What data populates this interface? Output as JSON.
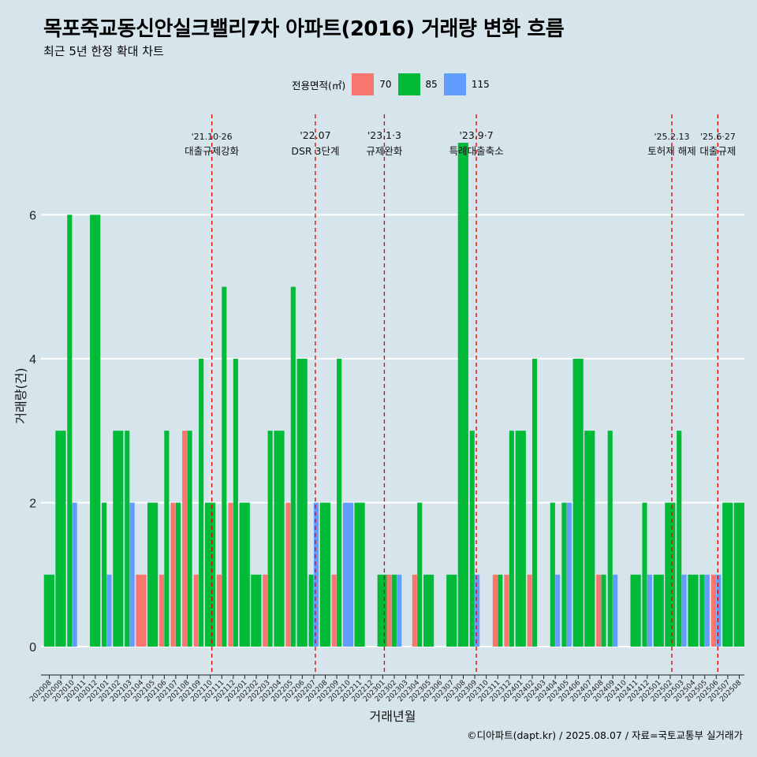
{
  "header": {
    "title": "목포죽교동신안실크밸리7차 아파트(2016) 거래량 변화 흐름",
    "subtitle": "최근 5년 한정 확대 차트"
  },
  "legend": {
    "title": "전용면적(㎡)",
    "items": [
      {
        "label": "70",
        "color": "#f8766d"
      },
      {
        "label": "85",
        "color": "#00ba38"
      },
      {
        "label": "115",
        "color": "#619cff"
      }
    ]
  },
  "caption": "©디아파트(dapt.kr) / 2025.08.07 / 자료=국토교통부 실거래가",
  "chart_data": {
    "type": "bar",
    "xlabel": "거래년월",
    "ylabel": "거래량(건)",
    "ylim": [
      -0.35,
      7.45
    ],
    "yticks": [
      0,
      2,
      4,
      6
    ],
    "grid": true,
    "legend_position": "top",
    "categories": [
      "202008",
      "202009",
      "202010",
      "202011",
      "202012",
      "202101",
      "202102",
      "202103",
      "202104",
      "202105",
      "202106",
      "202107",
      "202108",
      "202109",
      "202110",
      "202111",
      "202112",
      "202201",
      "202202",
      "202203",
      "202204",
      "202205",
      "202206",
      "202207",
      "202208",
      "202209",
      "202210",
      "202211",
      "202212",
      "202301",
      "202302",
      "202303",
      "202304",
      "202305",
      "202306",
      "202307",
      "202308",
      "202309",
      "202310",
      "202311",
      "202312",
      "202401",
      "202402",
      "202403",
      "202404",
      "202405",
      "202406",
      "202407",
      "202408",
      "202409",
      "202410",
      "202411",
      "202412",
      "202501",
      "202502",
      "202503",
      "202504",
      "202505",
      "202506",
      "202507",
      "202508"
    ],
    "series": [
      {
        "name": "70",
        "color": "#f8766d",
        "values": [
          0,
          0,
          0,
          0,
          0,
          0,
          0,
          0,
          1,
          0,
          1,
          2,
          3,
          1,
          0,
          1,
          2,
          0,
          0,
          1,
          0,
          2,
          0,
          0,
          0,
          1,
          0,
          0,
          0,
          0,
          1,
          0,
          1,
          0,
          0,
          0,
          0,
          0,
          0,
          1,
          1,
          0,
          1,
          0,
          0,
          0,
          0,
          0,
          1,
          0,
          0,
          0,
          0,
          0,
          0,
          0,
          0,
          0,
          1,
          0,
          0
        ]
      },
      {
        "name": "85",
        "color": "#00ba38",
        "values": [
          1,
          3,
          6,
          0,
          6,
          2,
          3,
          3,
          0,
          2,
          3,
          2,
          3,
          4,
          2,
          5,
          4,
          2,
          1,
          3,
          3,
          5,
          4,
          1,
          2,
          4,
          0,
          2,
          0,
          1,
          1,
          0,
          2,
          1,
          0,
          1,
          7,
          3,
          0,
          1,
          3,
          3,
          4,
          0,
          2,
          2,
          4,
          3,
          1,
          3,
          0,
          1,
          2,
          1,
          2,
          3,
          1,
          1,
          0,
          2,
          2
        ]
      },
      {
        "name": "115",
        "color": "#619cff",
        "values": [
          0,
          0,
          2,
          0,
          0,
          1,
          0,
          2,
          0,
          0,
          0,
          0,
          0,
          0,
          0,
          0,
          0,
          0,
          0,
          0,
          0,
          0,
          0,
          2,
          0,
          0,
          2,
          0,
          0,
          0,
          1,
          0,
          0,
          0,
          0,
          0,
          0,
          1,
          0,
          0,
          0,
          0,
          0,
          0,
          1,
          2,
          0,
          0,
          0,
          1,
          0,
          0,
          1,
          0,
          0,
          1,
          0,
          1,
          1,
          0,
          0
        ]
      }
    ],
    "annotations": [
      {
        "at": "202110",
        "date": "'21.10·26",
        "label": "대출규제강화"
      },
      {
        "at": "202207",
        "date": "'22.07",
        "label": "DSR 3단계"
      },
      {
        "at": "202301",
        "date": "'23.1·3",
        "label": "규제완화"
      },
      {
        "at": "202309",
        "date": "'23.9·7",
        "label": "특례대출축소"
      },
      {
        "at": "202502",
        "date": "'25.2.13",
        "label": "토허제 해제"
      },
      {
        "at": "202506",
        "date": "'25.6·27",
        "label": "대출규제"
      }
    ]
  }
}
